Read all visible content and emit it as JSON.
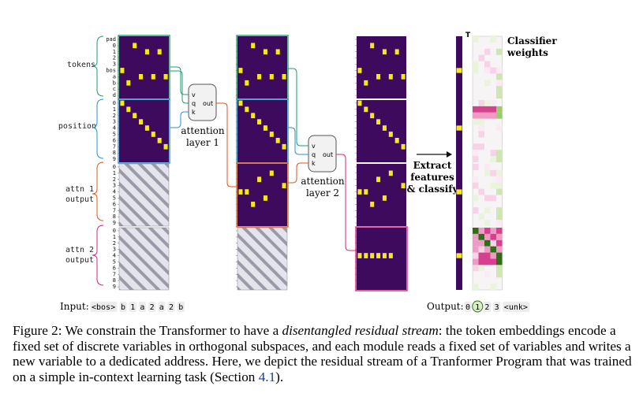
{
  "row_labels": [
    "pad",
    "0",
    "1",
    "2",
    "3",
    "bos",
    "a",
    "b",
    "c",
    "d",
    "0",
    "1",
    "2",
    "3",
    "4",
    "5",
    "6",
    "7",
    "8",
    "9",
    "0",
    "1",
    "2",
    "3",
    "4",
    "5",
    "6",
    "7",
    "8",
    "9",
    "0",
    "1",
    "2",
    "3",
    "4",
    "5",
    "6",
    "7",
    "8",
    "9"
  ],
  "group_labels": {
    "tokens": "tokens",
    "position": "position",
    "attn1": [
      "attn 1",
      "output"
    ],
    "attn2": [
      "attn 2",
      "output"
    ]
  },
  "modules": {
    "attn1": {
      "ports": [
        "v",
        "q",
        "k"
      ],
      "out": "out",
      "label": [
        "attention",
        "layer 1"
      ]
    },
    "attn2": {
      "ports": [
        "v",
        "q",
        "k"
      ],
      "out": "out",
      "label": [
        "attention",
        "layer 2"
      ]
    }
  },
  "extract_label": [
    "Extract",
    "features",
    "& classify"
  ],
  "classifier_title": [
    "Classifier",
    "weights"
  ],
  "transpose_mark": "T",
  "input": {
    "label": "Input:",
    "tokens": [
      "<bos>",
      "b",
      "1",
      "a",
      "2",
      "a",
      "2",
      "b"
    ]
  },
  "output": {
    "label": "Output:",
    "classes": [
      "0",
      "1",
      "2",
      "3",
      "<unk>"
    ],
    "selected_index": 1
  },
  "matrices": {
    "stage1_cells": [
      [
        1,
        2
      ],
      [
        2,
        4
      ],
      [
        2,
        6
      ],
      [
        5,
        0
      ],
      [
        6,
        3
      ],
      [
        6,
        5
      ],
      [
        6,
        7
      ],
      [
        7,
        1
      ],
      [
        10,
        0
      ],
      [
        11,
        1
      ],
      [
        12,
        2
      ],
      [
        13,
        3
      ],
      [
        14,
        4
      ],
      [
        15,
        5
      ],
      [
        16,
        6
      ],
      [
        17,
        7
      ]
    ],
    "stage2_cells": [
      [
        1,
        2
      ],
      [
        2,
        4
      ],
      [
        2,
        6
      ],
      [
        5,
        0
      ],
      [
        6,
        3
      ],
      [
        6,
        5
      ],
      [
        6,
        7
      ],
      [
        7,
        1
      ],
      [
        10,
        0
      ],
      [
        11,
        1
      ],
      [
        12,
        2
      ],
      [
        13,
        3
      ],
      [
        14,
        4
      ],
      [
        15,
        5
      ],
      [
        16,
        6
      ],
      [
        17,
        7
      ],
      [
        21,
        5
      ],
      [
        22,
        3
      ],
      [
        23,
        7
      ],
      [
        24,
        0
      ],
      [
        24,
        1
      ],
      [
        25,
        4
      ],
      [
        26,
        2
      ]
    ],
    "stage3_cells": [
      [
        1,
        2
      ],
      [
        2,
        4
      ],
      [
        2,
        6
      ],
      [
        5,
        0
      ],
      [
        6,
        3
      ],
      [
        6,
        5
      ],
      [
        6,
        7
      ],
      [
        7,
        1
      ],
      [
        10,
        0
      ],
      [
        11,
        1
      ],
      [
        12,
        2
      ],
      [
        13,
        3
      ],
      [
        14,
        4
      ],
      [
        15,
        5
      ],
      [
        16,
        6
      ],
      [
        17,
        7
      ],
      [
        21,
        5
      ],
      [
        22,
        3
      ],
      [
        23,
        7
      ],
      [
        24,
        0
      ],
      [
        24,
        1
      ],
      [
        25,
        4
      ],
      [
        26,
        2
      ],
      [
        34,
        0
      ],
      [
        34,
        1
      ],
      [
        34,
        2
      ],
      [
        34,
        3
      ],
      [
        34,
        4
      ],
      [
        34,
        5
      ]
    ],
    "feature_rows": [
      5,
      14,
      24,
      34
    ]
  },
  "colors": {
    "background_matrix": "#3d0a5e",
    "active_cell": "#f7e81d",
    "tokens_box": "#1f9e6e",
    "position_box": "#2b8fd6",
    "attn1_box": "#e0571f",
    "attn2_box": "#d6257a",
    "hatch": "#9a9aa8",
    "link": "#1f3a9c"
  },
  "caption": {
    "lead": "Figure 2: We constrain the Transformer to have a ",
    "emph": "disentangled residual stream",
    "body": ": the token embeddings encode a fixed set of discrete variables in orthogonal subspaces, and each module reads a fixed set of variables and writes a new variable to a dedicated address. Here, we depict the residual stream of a Tranformer Program that was trained on a simple in-context learning task (Section ",
    "ref": "4.1",
    "tail": ")."
  }
}
